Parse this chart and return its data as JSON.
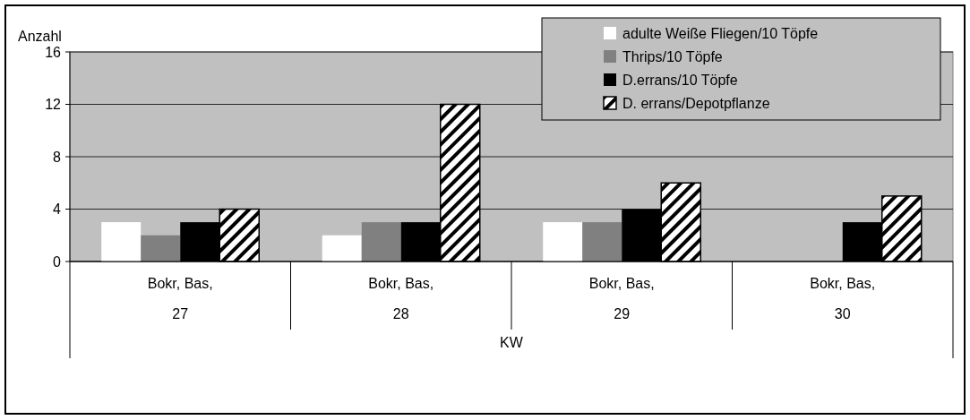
{
  "chart_data": {
    "type": "bar",
    "ylabel": "Anzahl",
    "xlabel": "KW",
    "categories": [
      "Bokr,  Bas,\n27",
      "Bokr,  Bas,\n28",
      "Bokr,  Bas,\n29",
      "Bokr,  Bas,\n30"
    ],
    "series": [
      {
        "name": "adulte Weiße Fliegen/10 Töpfe",
        "color": "#ffffff",
        "values": [
          3,
          2,
          3,
          0
        ]
      },
      {
        "name": "Thrips/10 Töpfe",
        "color": "#808080",
        "values": [
          2,
          3,
          3,
          0
        ]
      },
      {
        "name": "D.errans/10 Töpfe",
        "color": "#000000",
        "values": [
          3,
          3,
          4,
          3
        ]
      },
      {
        "name": "D. errans/Depotpflanze",
        "color": "#000000",
        "values": [
          4,
          12,
          6,
          5
        ]
      }
    ],
    "ylim": [
      0,
      16
    ],
    "yticks": [
      0,
      4,
      8,
      12,
      16
    ],
    "grid": "y",
    "legend": "top right"
  }
}
